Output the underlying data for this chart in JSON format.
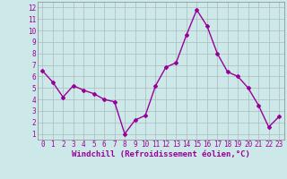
{
  "x": [
    0,
    1,
    2,
    3,
    4,
    5,
    6,
    7,
    8,
    9,
    10,
    11,
    12,
    13,
    14,
    15,
    16,
    17,
    18,
    19,
    20,
    21,
    22,
    23
  ],
  "y": [
    6.5,
    5.5,
    4.2,
    5.2,
    4.8,
    4.5,
    4.0,
    3.8,
    1.0,
    2.2,
    2.6,
    5.2,
    6.8,
    7.2,
    9.6,
    11.8,
    10.4,
    8.0,
    6.4,
    6.0,
    5.0,
    3.5,
    1.6,
    2.5
  ],
  "line_color": "#990099",
  "marker": "D",
  "marker_size": 2.0,
  "bg_color": "#cce8e8",
  "grid_color": "#aabbbb",
  "xlabel": "Windchill (Refroidissement éolien,°C)",
  "xlim": [
    -0.5,
    23.5
  ],
  "ylim": [
    0.5,
    12.5
  ],
  "xticks": [
    0,
    1,
    2,
    3,
    4,
    5,
    6,
    7,
    8,
    9,
    10,
    11,
    12,
    13,
    14,
    15,
    16,
    17,
    18,
    19,
    20,
    21,
    22,
    23
  ],
  "yticks": [
    1,
    2,
    3,
    4,
    5,
    6,
    7,
    8,
    9,
    10,
    11,
    12
  ],
  "xlabel_fontsize": 6.5,
  "tick_fontsize": 5.5,
  "line_width": 1.0
}
